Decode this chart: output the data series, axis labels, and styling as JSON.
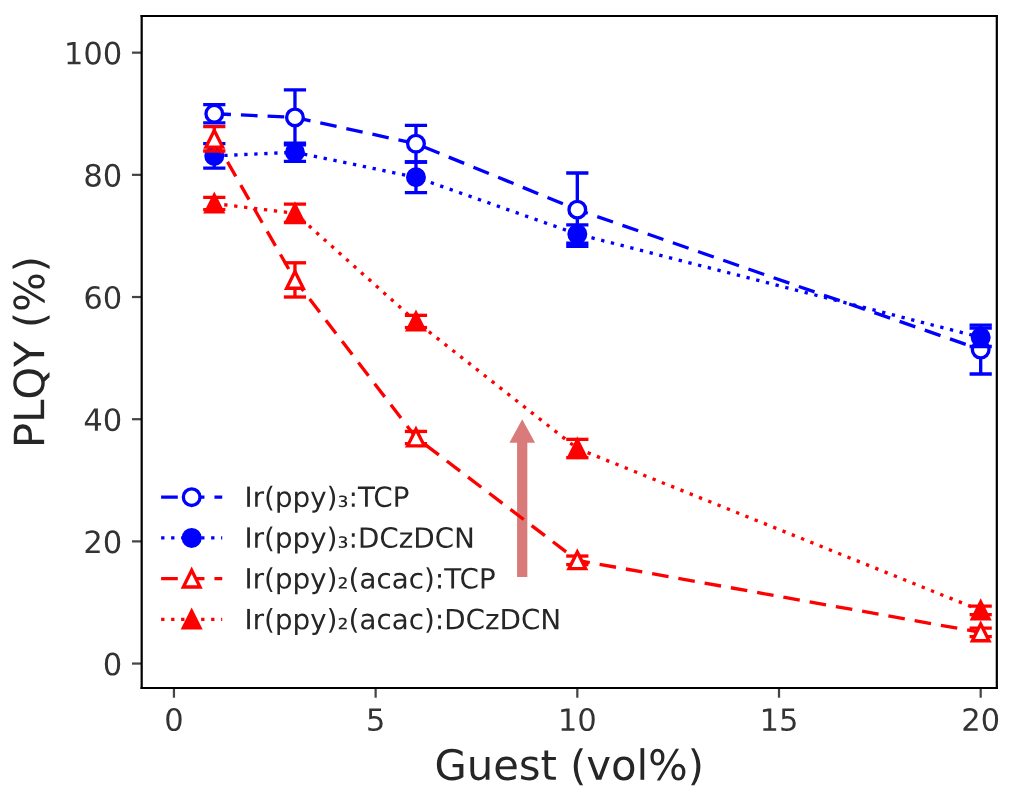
{
  "chart_data": {
    "type": "line",
    "xlabel": "Guest (vol%)",
    "ylabel": "PLQY (%)",
    "x": [
      1,
      3,
      6,
      10,
      20
    ],
    "xlim": [
      -0.8,
      20.4
    ],
    "xticks": [
      0,
      5,
      10,
      15,
      20
    ],
    "ylim": [
      -4,
      106
    ],
    "yticks": [
      0,
      20,
      40,
      60,
      80,
      100
    ],
    "grid": false,
    "legend": "bottom left",
    "series": [
      {
        "name": "Ir(ppy)₃:TCP",
        "color": "#0000ff",
        "marker": "circle",
        "line_style": "dashed",
        "values": [
          90,
          89.4,
          85.1,
          74.3,
          51.4
        ],
        "errors": [
          1.5,
          4.5,
          3,
          6,
          4
        ]
      },
      {
        "name": "Ir(ppy)₃:DCzDCN",
        "color": "#0000ff",
        "marker": "circle",
        "line_style": "dotted",
        "values": [
          83.1,
          83.7,
          79.6,
          70.3,
          53.4
        ],
        "errors": [
          2,
          1.5,
          2.5,
          1.5,
          1.5
        ]
      },
      {
        "name": "Ir(ppy)₂(acac):TCP",
        "color": "#ff0000",
        "marker": "triangle",
        "line_style": "dashed",
        "values": [
          85.9,
          62.8,
          37,
          16.9,
          5.1
        ],
        "errors": [
          2,
          2.8,
          1,
          0.7,
          0.7
        ]
      },
      {
        "name": "Ir(ppy)₂(acac):DCzDCN",
        "color": "#ff0000",
        "marker": "triangle",
        "line_style": "dotted",
        "values": [
          75.3,
          73.7,
          56,
          35.2,
          8.7
        ],
        "errors": [
          1,
          1.5,
          1,
          1.5,
          0.7
        ]
      }
    ]
  }
}
